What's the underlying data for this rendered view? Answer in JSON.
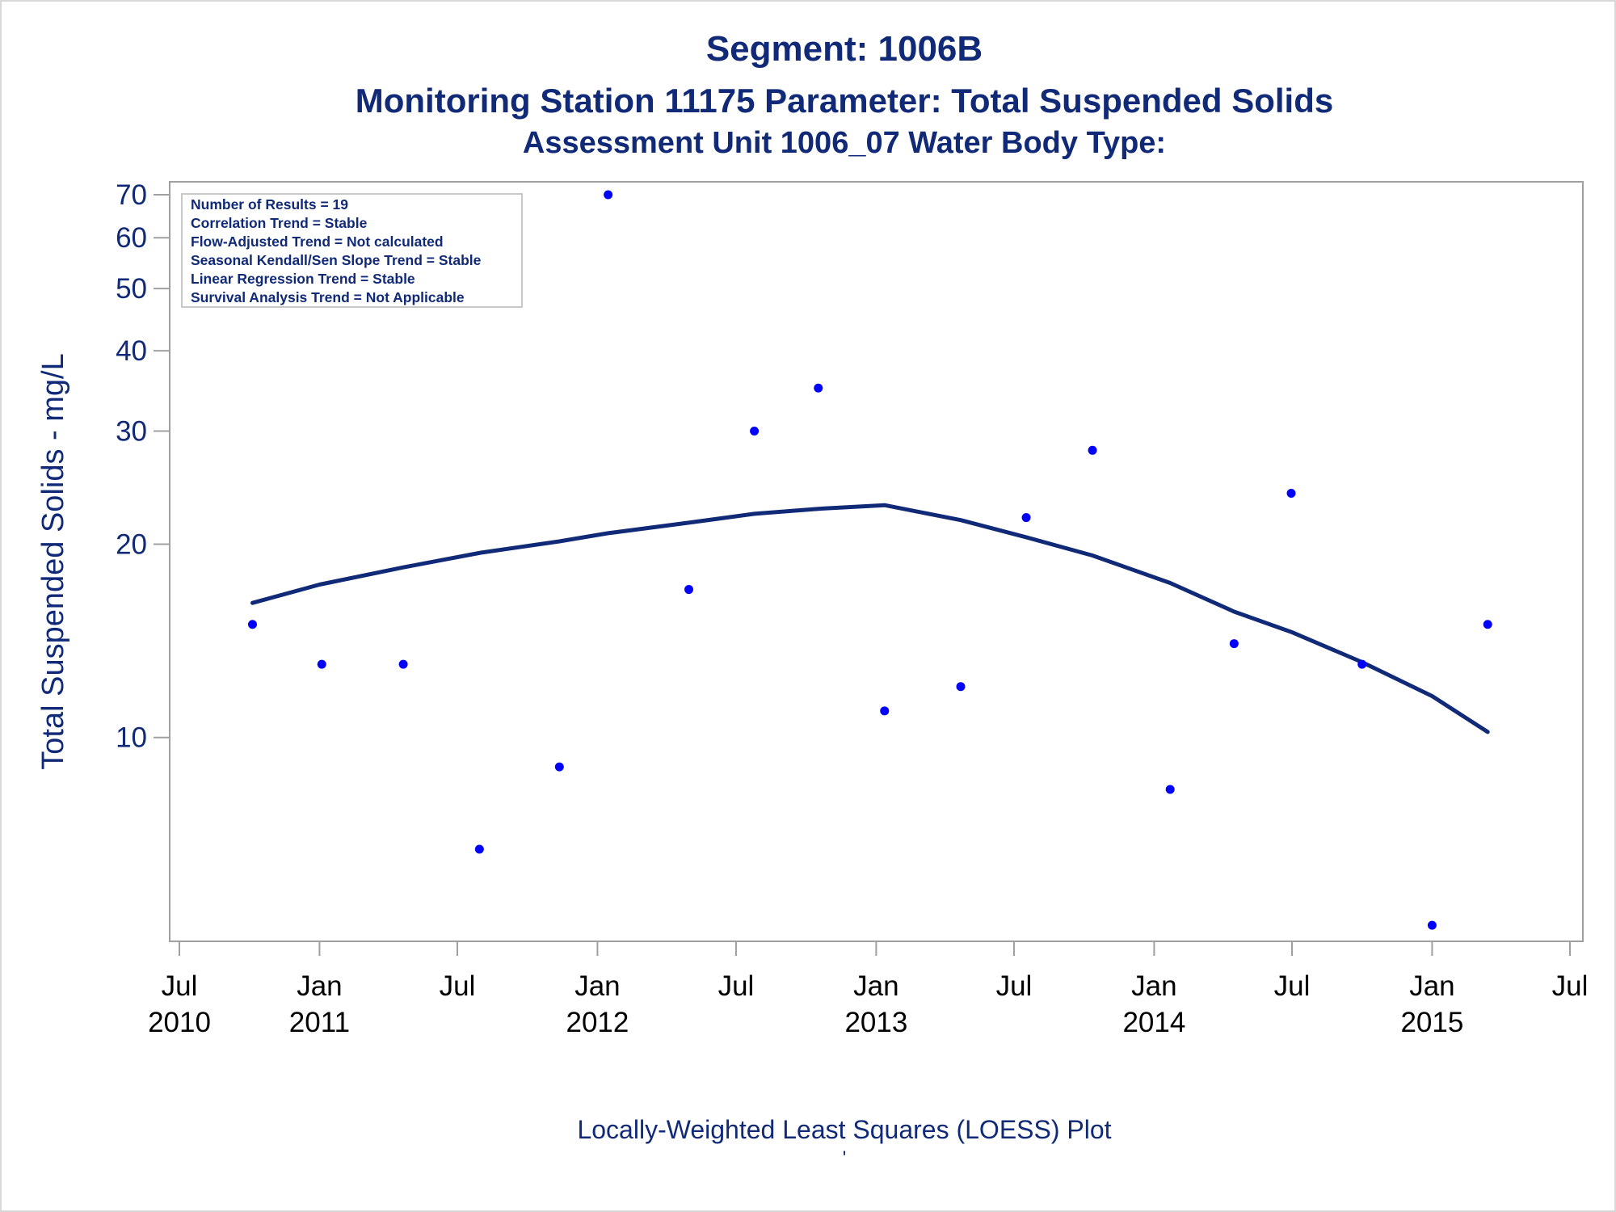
{
  "titles": {
    "line1": "Segment: 1006B",
    "line2": "Monitoring Station 11175 Parameter: Total Suspended Solids",
    "line3": "Assessment Unit 1006_07   Water Body Type:"
  },
  "footnote": "Locally-Weighted Least Squares (LOESS) Plot",
  "footnote_mark": "'",
  "stats_box": [
    "Number of Results = 19",
    "Correlation Trend = Stable",
    "Flow-Adjusted Trend = Not calculated",
    "Seasonal Kendall/Sen Slope Trend = Stable",
    "Linear Regression Trend = Stable",
    "Survival Analysis Trend = Not Applicable"
  ],
  "colors": {
    "title_text": "#112a78",
    "points": "#0000ff",
    "loess_line": "#112a78",
    "frame": "#a0a0a0"
  },
  "chart_data": {
    "type": "scatter",
    "ylabel": "Total Suspended Solids - mg/L",
    "xlabel": "",
    "yscale": "log",
    "ylim": [
      5,
      70
    ],
    "xlim": [
      "2010-07-01",
      "2015-07-01"
    ],
    "yticks": [
      10,
      20,
      30,
      40,
      50,
      60,
      70
    ],
    "xticks": [
      {
        "date": "2010-07-01",
        "month": "Jul",
        "year": "2010"
      },
      {
        "date": "2011-01-01",
        "month": "Jan",
        "year": "2011"
      },
      {
        "date": "2011-07-01",
        "month": "Jul",
        "year": ""
      },
      {
        "date": "2012-01-01",
        "month": "Jan",
        "year": "2012"
      },
      {
        "date": "2012-07-01",
        "month": "Jul",
        "year": ""
      },
      {
        "date": "2013-01-01",
        "month": "Jan",
        "year": "2013"
      },
      {
        "date": "2013-07-01",
        "month": "Jul",
        "year": ""
      },
      {
        "date": "2014-01-01",
        "month": "Jan",
        "year": "2014"
      },
      {
        "date": "2014-07-01",
        "month": "Jul",
        "year": ""
      },
      {
        "date": "2015-01-01",
        "month": "Jan",
        "year": "2015"
      },
      {
        "date": "2015-07-01",
        "month": "Jul",
        "year": ""
      }
    ],
    "series": [
      {
        "kind": "points",
        "points": [
          {
            "x": "2010-10-05",
            "y": 15
          },
          {
            "x": "2011-01-04",
            "y": 13
          },
          {
            "x": "2011-04-21",
            "y": 13
          },
          {
            "x": "2011-07-30",
            "y": 6.7
          },
          {
            "x": "2011-11-12",
            "y": 9
          },
          {
            "x": "2012-01-15",
            "y": 70
          },
          {
            "x": "2012-04-30",
            "y": 17
          },
          {
            "x": "2012-07-25",
            "y": 30
          },
          {
            "x": "2012-10-17",
            "y": 35
          },
          {
            "x": "2013-01-12",
            "y": 11
          },
          {
            "x": "2013-04-22",
            "y": 12
          },
          {
            "x": "2013-07-17",
            "y": 22
          },
          {
            "x": "2013-10-12",
            "y": 28
          },
          {
            "x": "2014-01-22",
            "y": 8.3
          },
          {
            "x": "2014-04-16",
            "y": 14
          },
          {
            "x": "2014-06-30",
            "y": 24
          },
          {
            "x": "2014-10-01",
            "y": 13
          },
          {
            "x": "2015-01-01",
            "y": 5.1
          },
          {
            "x": "2015-03-15",
            "y": 15
          }
        ]
      },
      {
        "kind": "loess",
        "points": [
          {
            "x": "2010-10-05",
            "y": 16.2
          },
          {
            "x": "2011-01-01",
            "y": 17.3
          },
          {
            "x": "2011-04-21",
            "y": 18.4
          },
          {
            "x": "2011-08-01",
            "y": 19.4
          },
          {
            "x": "2011-11-12",
            "y": 20.2
          },
          {
            "x": "2012-01-15",
            "y": 20.8
          },
          {
            "x": "2012-04-30",
            "y": 21.6
          },
          {
            "x": "2012-07-25",
            "y": 22.3
          },
          {
            "x": "2012-10-17",
            "y": 22.7
          },
          {
            "x": "2013-01-12",
            "y": 23.0
          },
          {
            "x": "2013-04-22",
            "y": 21.8
          },
          {
            "x": "2013-07-17",
            "y": 20.5
          },
          {
            "x": "2013-10-12",
            "y": 19.2
          },
          {
            "x": "2014-01-22",
            "y": 17.4
          },
          {
            "x": "2014-04-16",
            "y": 15.7
          },
          {
            "x": "2014-06-30",
            "y": 14.6
          },
          {
            "x": "2014-10-01",
            "y": 13.1
          },
          {
            "x": "2015-01-01",
            "y": 11.6
          },
          {
            "x": "2015-03-15",
            "y": 10.2
          }
        ]
      }
    ]
  }
}
